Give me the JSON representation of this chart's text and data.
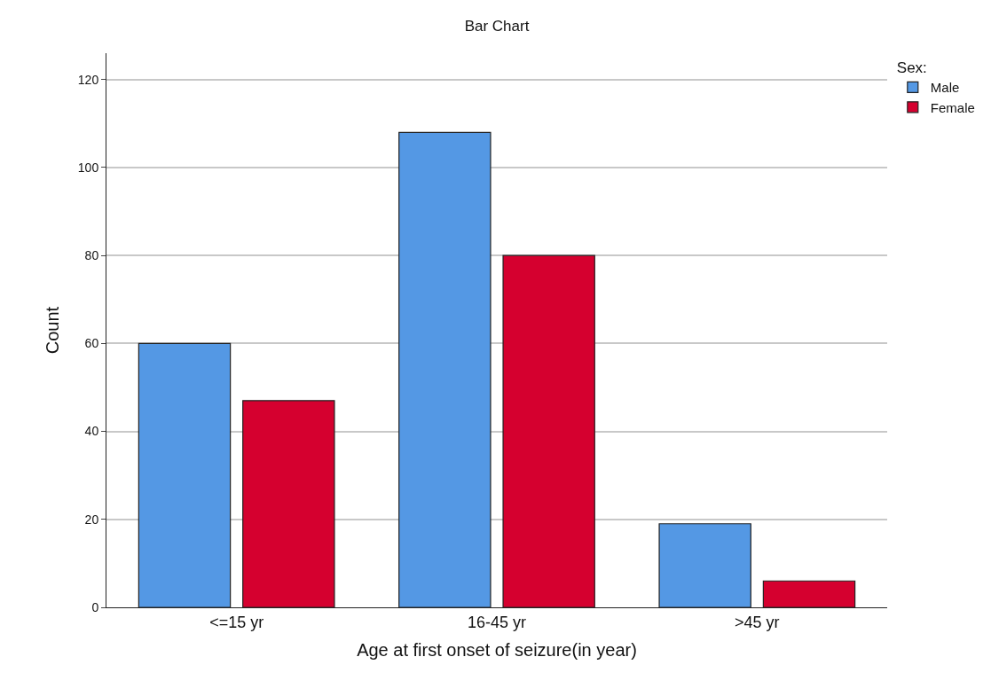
{
  "chart_data": {
    "type": "bar",
    "title": "Bar Chart",
    "xlabel": "Age at first onset of seizure(in year)",
    "ylabel": "Count",
    "legend_title": "Sex:",
    "categories": [
      "<=15 yr",
      "16-45 yr",
      ">45 yr"
    ],
    "series": [
      {
        "name": "Male",
        "color": "#5498e4",
        "values": [
          60,
          108,
          19
        ]
      },
      {
        "name": "Female",
        "color": "#d5002f",
        "values": [
          47,
          80,
          6
        ]
      }
    ],
    "ylim": [
      0,
      126
    ],
    "yticks": [
      0,
      20,
      40,
      60,
      80,
      100,
      120
    ],
    "grid": "y",
    "legend": "top right"
  }
}
